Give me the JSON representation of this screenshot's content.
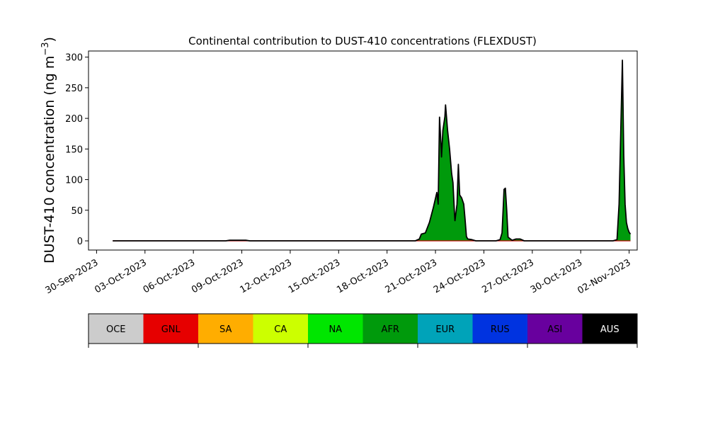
{
  "chart_data": {
    "type": "area",
    "title": "Continental contribution to DUST-410 concentrations (FLEXDUST)",
    "ylabel_main": "DUST-410 concentration (ng m",
    "ylabel_exp": "−3",
    "ylabel_close": ")",
    "xlim": [
      "2023-09-29T12:00",
      "2023-11-02T12:00"
    ],
    "ylim": [
      -15,
      310
    ],
    "yticks": [
      0,
      50,
      100,
      150,
      200,
      250,
      300
    ],
    "xticks": [
      {
        "date": "2023-09-30",
        "label": "30-Sep-2023"
      },
      {
        "date": "2023-10-03",
        "label": "03-Oct-2023"
      },
      {
        "date": "2023-10-06",
        "label": "06-Oct-2023"
      },
      {
        "date": "2023-10-09",
        "label": "09-Oct-2023"
      },
      {
        "date": "2023-10-12",
        "label": "12-Oct-2023"
      },
      {
        "date": "2023-10-15",
        "label": "15-Oct-2023"
      },
      {
        "date": "2023-10-18",
        "label": "18-Oct-2023"
      },
      {
        "date": "2023-10-21",
        "label": "21-Oct-2023"
      },
      {
        "date": "2023-10-24",
        "label": "24-Oct-2023"
      },
      {
        "date": "2023-10-27",
        "label": "27-Oct-2023"
      },
      {
        "date": "2023-10-30",
        "label": "30-Oct-2023"
      },
      {
        "date": "2023-11-02",
        "label": "02-Nov-2023"
      }
    ],
    "series": [
      {
        "name": "AFR",
        "color": "#009a0c",
        "points": [
          [
            "2023-10-01T00:00",
            0
          ],
          [
            "2023-10-08T00:00",
            0
          ],
          [
            "2023-10-08T06:00",
            1
          ],
          [
            "2023-10-09T06:00",
            1
          ],
          [
            "2023-10-09T12:00",
            0
          ],
          [
            "2023-10-19T18:00",
            0
          ],
          [
            "2023-10-20T00:00",
            3
          ],
          [
            "2023-10-20T03:00",
            11
          ],
          [
            "2023-10-20T09:00",
            13
          ],
          [
            "2023-10-20T15:00",
            30
          ],
          [
            "2023-10-20T21:00",
            55
          ],
          [
            "2023-10-21T02:00",
            79
          ],
          [
            "2023-10-21T04:00",
            60
          ],
          [
            "2023-10-21T06:00",
            202
          ],
          [
            "2023-10-21T08:00",
            160
          ],
          [
            "2023-10-21T09:00",
            137
          ],
          [
            "2023-10-21T11:00",
            180
          ],
          [
            "2023-10-21T14:00",
            203
          ],
          [
            "2023-10-21T15:00",
            222
          ],
          [
            "2023-10-21T18:00",
            180
          ],
          [
            "2023-10-21T21:00",
            150
          ],
          [
            "2023-10-22T00:00",
            110
          ],
          [
            "2023-10-22T02:00",
            95
          ],
          [
            "2023-10-22T04:00",
            50
          ],
          [
            "2023-10-22T05:00",
            33
          ],
          [
            "2023-10-22T08:00",
            60
          ],
          [
            "2023-10-22T10:00",
            125
          ],
          [
            "2023-10-22T12:00",
            75
          ],
          [
            "2023-10-22T15:00",
            70
          ],
          [
            "2023-10-22T18:00",
            60
          ],
          [
            "2023-10-22T20:00",
            35
          ],
          [
            "2023-10-22T22:00",
            7
          ],
          [
            "2023-10-23T00:00",
            3
          ],
          [
            "2023-10-23T06:00",
            2
          ],
          [
            "2023-10-23T12:00",
            0
          ],
          [
            "2023-10-24T18:00",
            0
          ],
          [
            "2023-10-25T00:00",
            2
          ],
          [
            "2023-10-25T03:00",
            13
          ],
          [
            "2023-10-25T05:00",
            60
          ],
          [
            "2023-10-25T06:00",
            84
          ],
          [
            "2023-10-25T08:00",
            86
          ],
          [
            "2023-10-25T10:00",
            50
          ],
          [
            "2023-10-25T12:00",
            6
          ],
          [
            "2023-10-25T18:00",
            1
          ],
          [
            "2023-10-26T00:00",
            3
          ],
          [
            "2023-10-26T06:00",
            3
          ],
          [
            "2023-10-26T12:00",
            0
          ],
          [
            "2023-11-01T00:00",
            0
          ],
          [
            "2023-11-01T06:00",
            2
          ],
          [
            "2023-11-01T09:00",
            60
          ],
          [
            "2023-11-01T12:00",
            200
          ],
          [
            "2023-11-01T14:00",
            295
          ],
          [
            "2023-11-01T16:00",
            140
          ],
          [
            "2023-11-01T18:00",
            60
          ],
          [
            "2023-11-01T20:00",
            30
          ],
          [
            "2023-11-01T22:00",
            20
          ],
          [
            "2023-11-02T00:00",
            14
          ],
          [
            "2023-11-02T02:00",
            11
          ]
        ]
      }
    ],
    "legend": {
      "placement": "bottom",
      "entries": [
        {
          "label": "OCE",
          "color": "#cccccc",
          "text_color": "#000000"
        },
        {
          "label": "GNL",
          "color": "#e60000",
          "text_color": "#000000"
        },
        {
          "label": "SA",
          "color": "#ffad00",
          "text_color": "#000000"
        },
        {
          "label": "CA",
          "color": "#ccff00",
          "text_color": "#000000"
        },
        {
          "label": "NA",
          "color": "#00e600",
          "text_color": "#000000"
        },
        {
          "label": "AFR",
          "color": "#009a0c",
          "text_color": "#000000"
        },
        {
          "label": "EUR",
          "color": "#00a3b9",
          "text_color": "#000000"
        },
        {
          "label": "RUS",
          "color": "#0033e0",
          "text_color": "#000000"
        },
        {
          "label": "ASI",
          "color": "#68009e",
          "text_color": "#000000"
        },
        {
          "label": "AUS",
          "color": "#000000",
          "text_color": "#ffffff"
        }
      ]
    },
    "grid": false
  }
}
